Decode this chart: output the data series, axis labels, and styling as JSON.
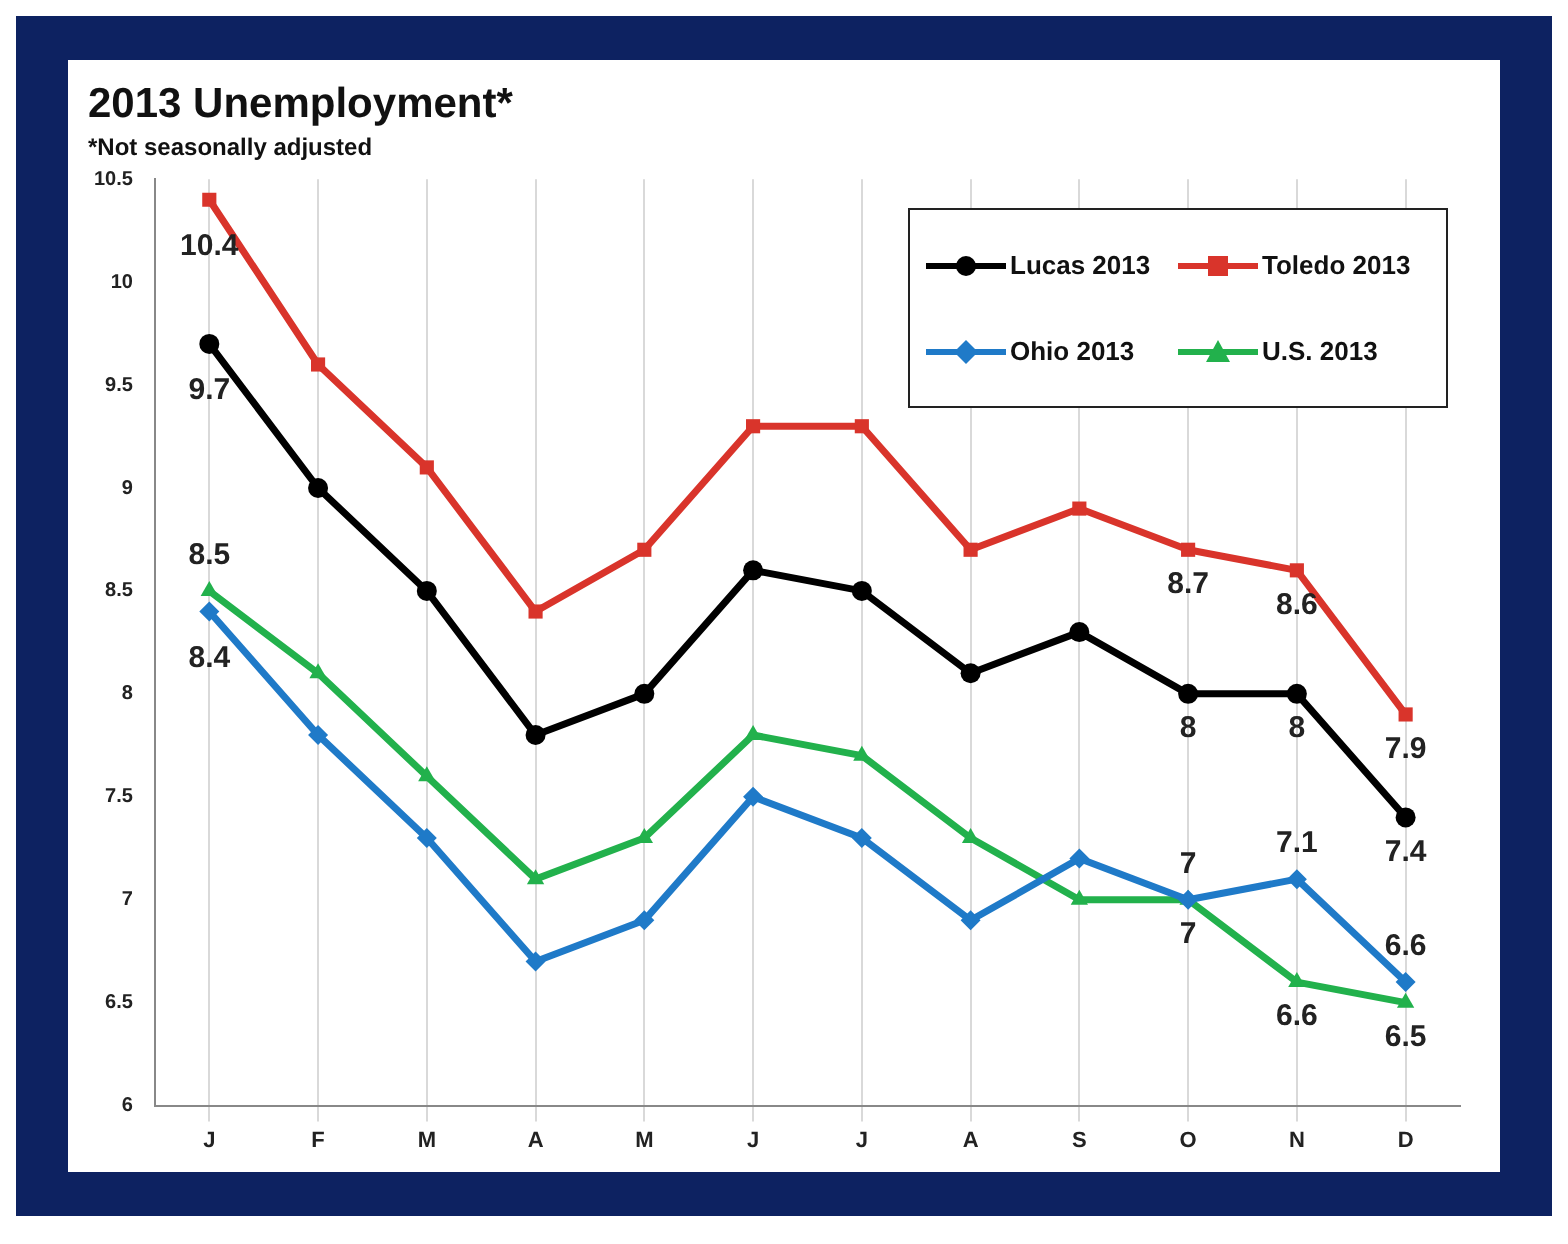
{
  "chart_data": {
    "type": "line",
    "title": "2013 Unemployment*",
    "subtitle": "*Not seasonally adjusted",
    "categories": [
      "J",
      "F",
      "M",
      "A",
      "M",
      "J",
      "J",
      "A",
      "S",
      "O",
      "N",
      "D"
    ],
    "series": [
      {
        "name": "Lucas 2013",
        "color": "#000000",
        "marker": "circle",
        "values": [
          9.7,
          9.0,
          8.5,
          7.8,
          8.0,
          8.6,
          8.5,
          8.1,
          8.3,
          8,
          8,
          7.4
        ],
        "value_labels": [
          "9.7",
          null,
          null,
          null,
          null,
          null,
          null,
          null,
          null,
          "8",
          "8",
          "7.4"
        ]
      },
      {
        "name": "Toledo 2013",
        "color": "#d9342b",
        "marker": "square",
        "values": [
          10.4,
          9.6,
          9.1,
          8.4,
          8.7,
          9.3,
          9.3,
          8.7,
          8.9,
          8.7,
          8.6,
          7.9
        ],
        "value_labels": [
          "10.4",
          null,
          null,
          null,
          null,
          null,
          null,
          null,
          null,
          "8.7",
          "8.6",
          "7.9"
        ]
      },
      {
        "name": "Ohio 2013",
        "color": "#1f7ac8",
        "marker": "diamond",
        "values": [
          8.4,
          7.8,
          7.3,
          6.7,
          6.9,
          7.5,
          7.3,
          6.9,
          7.2,
          7,
          7.1,
          6.6
        ],
        "value_labels": [
          "8.4",
          null,
          null,
          null,
          null,
          null,
          null,
          null,
          null,
          "7",
          "7.1",
          "6.6"
        ]
      },
      {
        "name": "U.S. 2013",
        "color": "#22b14c",
        "marker": "triangle",
        "values": [
          8.5,
          8.1,
          7.6,
          7.1,
          7.3,
          7.8,
          7.7,
          7.3,
          7.0,
          7,
          6.6,
          6.5
        ],
        "value_labels": [
          "8.5",
          null,
          null,
          null,
          null,
          null,
          null,
          null,
          null,
          "7",
          "6.6",
          "6.5"
        ]
      }
    ],
    "ylim": [
      6,
      10.5
    ],
    "yticks": [
      6,
      6.5,
      7,
      7.5,
      8,
      8.5,
      9,
      9.5,
      10,
      10.5
    ],
    "grid": "x",
    "legend": "top right"
  }
}
